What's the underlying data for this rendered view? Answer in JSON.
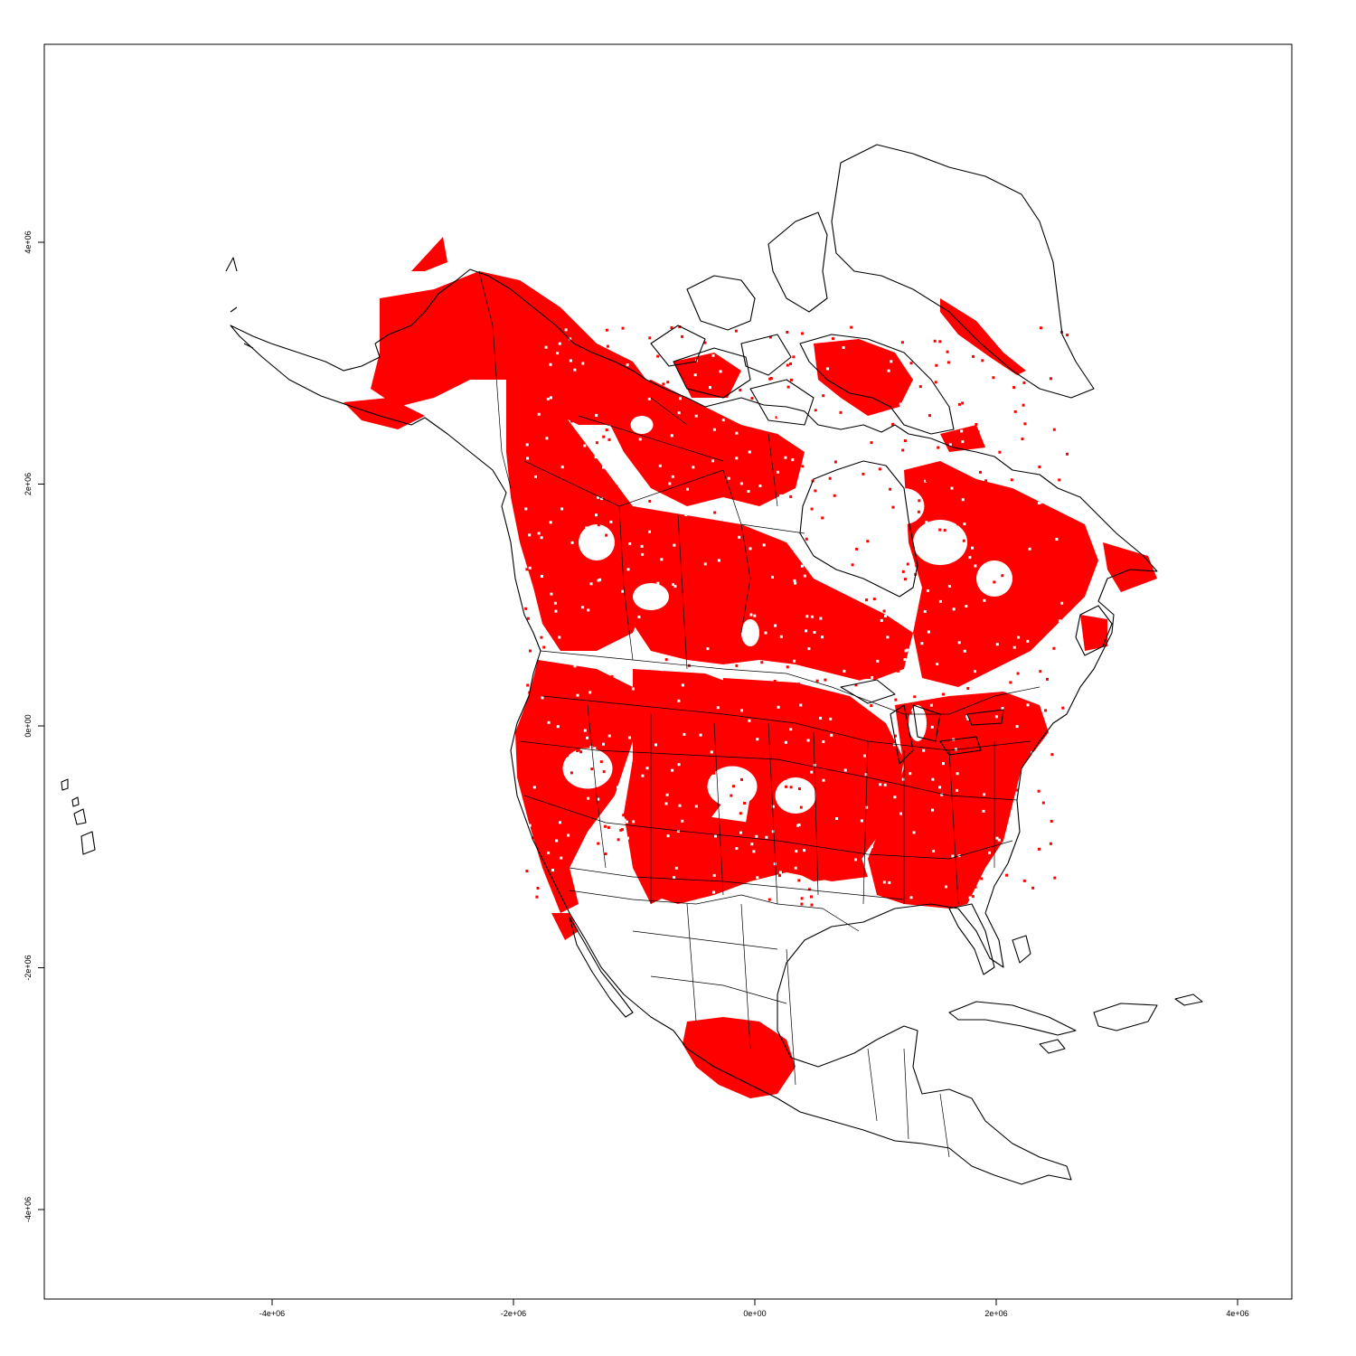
{
  "map": {
    "type": "raster-map",
    "highlight_color": "#ff0000",
    "outline_color": "#000000",
    "background": "#ffffff",
    "x_axis": {
      "ticks": [
        {
          "value": -4000000,
          "label": "-4e+06"
        },
        {
          "value": -2000000,
          "label": "-2e+06"
        },
        {
          "value": 0,
          "label": "0e+00"
        },
        {
          "value": 2000000,
          "label": "2e+06"
        },
        {
          "value": 4000000,
          "label": "4e+06"
        }
      ]
    },
    "y_axis": {
      "ticks": [
        {
          "value": 4000000,
          "label": "4e+06"
        },
        {
          "value": 2000000,
          "label": "2e+06"
        },
        {
          "value": 0,
          "label": "0e+00"
        },
        {
          "value": -2000000,
          "label": "-2e+06"
        },
        {
          "value": -4000000,
          "label": "-4e+06"
        }
      ]
    },
    "grid": false
  }
}
